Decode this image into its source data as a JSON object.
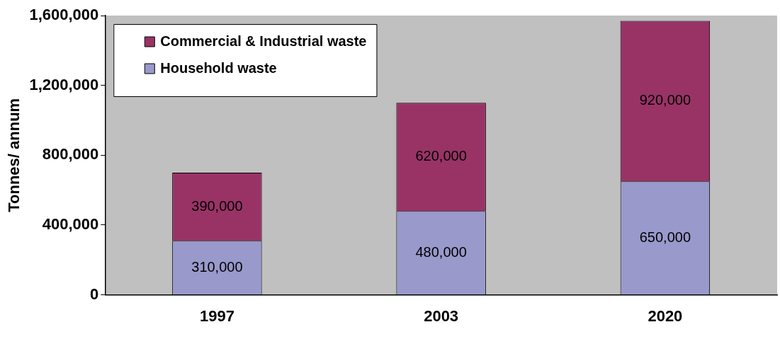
{
  "chart_data": {
    "type": "bar",
    "stacked": true,
    "ylabel": "Tonnes/ annum",
    "categories": [
      "1997",
      "2003",
      "2020"
    ],
    "series": [
      {
        "name": "Household waste",
        "color": "#9999cc",
        "values": [
          310000,
          480000,
          650000
        ],
        "value_labels": [
          "310,000",
          "480,000",
          "650,000"
        ]
      },
      {
        "name": "Commercial & Industrial waste",
        "color": "#993366",
        "values": [
          390000,
          620000,
          920000
        ],
        "value_labels": [
          "390,000",
          "620,000",
          "920,000"
        ]
      }
    ],
    "ylim": [
      0,
      1600000
    ],
    "yticks": [
      {
        "value": 0,
        "label": "0"
      },
      {
        "value": 400000,
        "label": "400,000"
      },
      {
        "value": 800000,
        "label": "800,000"
      },
      {
        "value": 1200000,
        "label": "1,200,000"
      },
      {
        "value": 1600000,
        "label": "1,600,000"
      }
    ],
    "grid": false,
    "legend": "top left"
  }
}
